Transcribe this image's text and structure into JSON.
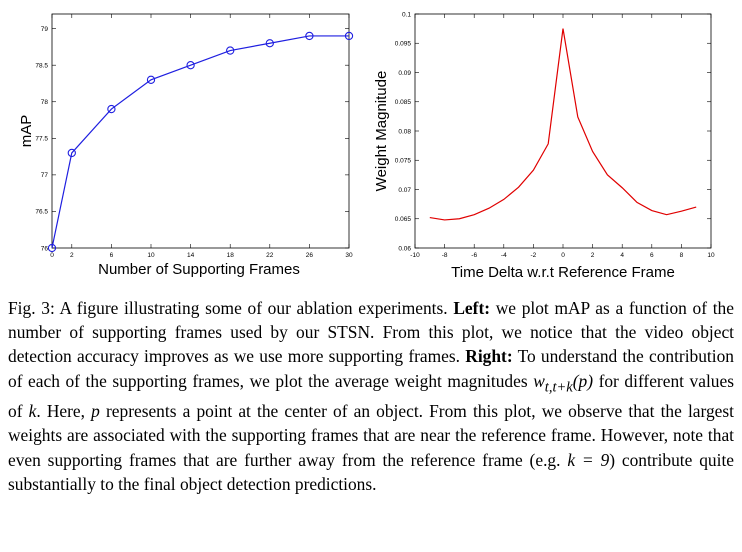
{
  "chart_data": [
    {
      "type": "line",
      "xlabel": "Number of Supporting Frames",
      "ylabel": "mAP",
      "x": [
        0,
        2,
        6,
        10,
        14,
        18,
        22,
        26,
        30
      ],
      "y": [
        76,
        77.3,
        77.9,
        78.3,
        78.5,
        78.7,
        78.8,
        78.9,
        78.9
      ],
      "xlim": [
        0,
        30
      ],
      "ylim": [
        76,
        79.2
      ],
      "xticks": [
        "0",
        "2",
        "6",
        "10",
        "14",
        "18",
        "22",
        "26",
        "30"
      ],
      "yticks": [
        "76",
        "76.5",
        "77",
        "77.5",
        "78",
        "78.5",
        "79"
      ],
      "line_color": "#1f1fe0",
      "marker": "circle"
    },
    {
      "type": "line",
      "xlabel": "Time Delta w.r.t Reference Frame",
      "ylabel": "Weight Magnitude",
      "x": [
        -9,
        -8,
        -7,
        -6,
        -5,
        -4,
        -3,
        -2,
        -1,
        0,
        1,
        2,
        3,
        4,
        5,
        6,
        7,
        8,
        9
      ],
      "y": [
        0.0652,
        0.0648,
        0.065,
        0.0657,
        0.0668,
        0.0683,
        0.0704,
        0.0733,
        0.0778,
        0.0975,
        0.0824,
        0.0765,
        0.0725,
        0.0703,
        0.0678,
        0.0664,
        0.0657,
        0.0663,
        0.067
      ],
      "xlim": [
        -10,
        10
      ],
      "ylim": [
        0.06,
        0.1
      ],
      "xticks": [
        "-10",
        "-8",
        "-6",
        "-4",
        "-2",
        "0",
        "2",
        "4",
        "6",
        "8",
        "10"
      ],
      "yticks": [
        "0.06",
        "0.065",
        "0.07",
        "0.075",
        "0.08",
        "0.085",
        "0.09",
        "0.095",
        "0.1"
      ],
      "line_color": "#e00000"
    }
  ],
  "caption": {
    "label": "Fig. 3: A figure illustrating some of our ablation experiments.",
    "left_heading": "Left:",
    "text_1": "we plot mAP as a function of the number of supporting frames used by our STSN. From this plot, we notice that the video object detection accuracy improves as we use more supporting frames.",
    "right_heading": "Right:",
    "text_2": "To understand the contribution of each of the supporting frames, we plot the average weight magnitudes",
    "math_w": "w",
    "math_w_sub": "t,t+k",
    "math_w_arg": "(p)",
    "text_3": "for different values of",
    "math_k": "k",
    "text_4": ". Here,",
    "math_p": "p",
    "text_5": "represents a point at the center of an object. From this plot, we observe that the largest weights are associated with the supporting frames that are near the reference frame. However, note that even supporting frames that are further away from the reference frame (e.g.",
    "math_k9": "k = 9",
    "text_6": ") contribute quite substantially to the final object detection predictions."
  }
}
